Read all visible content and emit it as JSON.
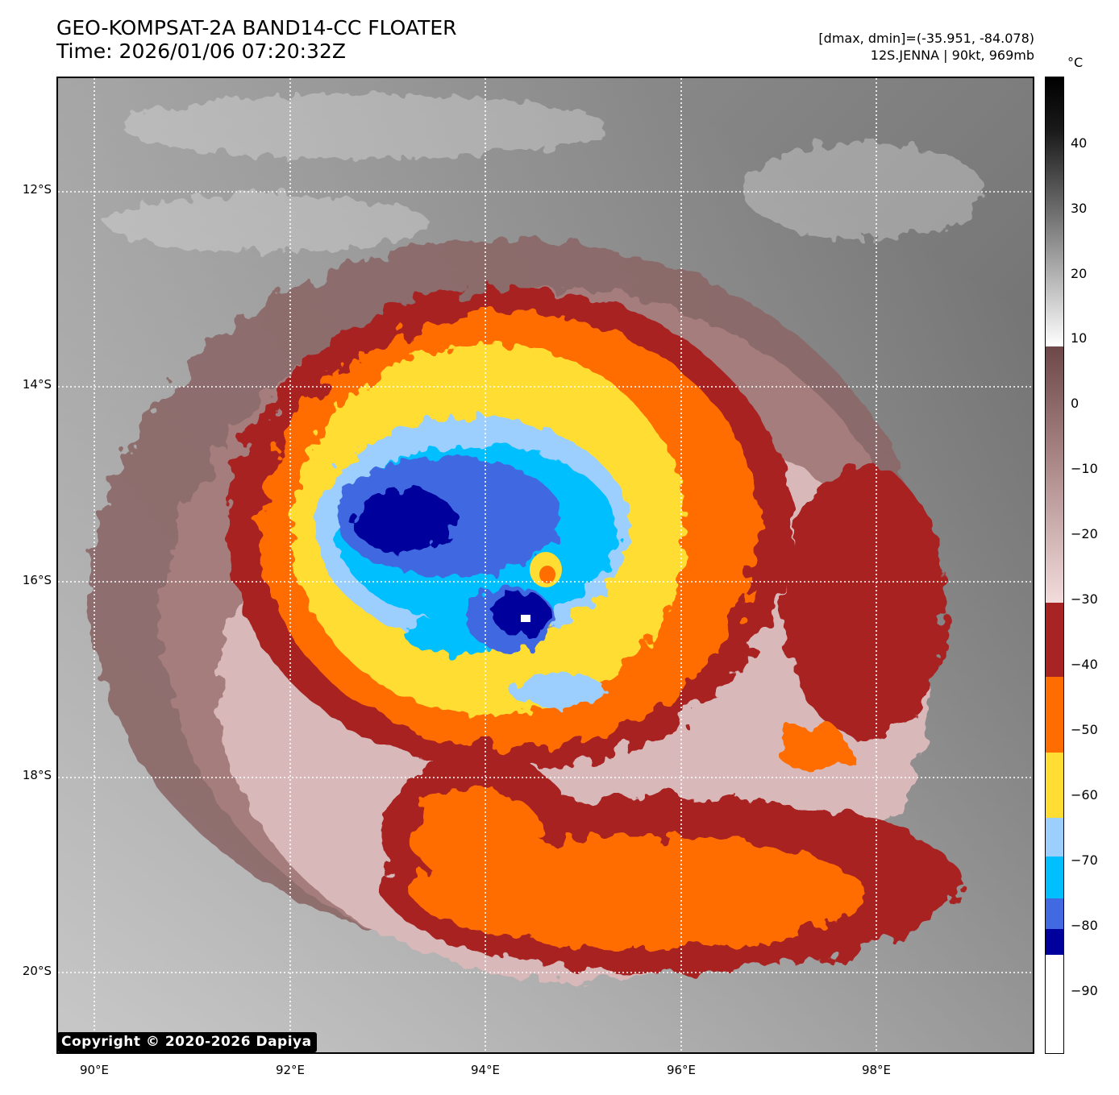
{
  "title": {
    "line1": "GEO-KOMPSAT-2A BAND14-CC FLOATER",
    "line2": "Time: 2026/01/06 07:20:32Z"
  },
  "info": {
    "line1": "[dmax, dmin]=(-35.951, -84.078)",
    "line2": "12S.JENNA | 90kt, 969mb"
  },
  "map": {
    "lat_labels": [
      "12°S",
      "14°S",
      "16°S",
      "18°S",
      "20°S"
    ],
    "lon_labels": [
      "90°E",
      "92°E",
      "94°E",
      "96°E",
      "98°E"
    ],
    "copyright": "Copyright © 2020-2026 Dapiya"
  },
  "colorbar": {
    "unit": "°C",
    "ticks": [
      "40",
      "30",
      "20",
      "10",
      "0",
      "−10",
      "−20",
      "−30",
      "−40",
      "−50",
      "−60",
      "−70",
      "−80",
      "−90"
    ],
    "colors": {
      "cold_white": "#ffffff",
      "navy": "#00009c",
      "royal_blue": "#4169e1",
      "cyan": "#00bfff",
      "light_blue": "#9ccffd",
      "yellow": "#ffdd33",
      "orange": "#ff6d00",
      "dark_red": "#a82424"
    }
  }
}
